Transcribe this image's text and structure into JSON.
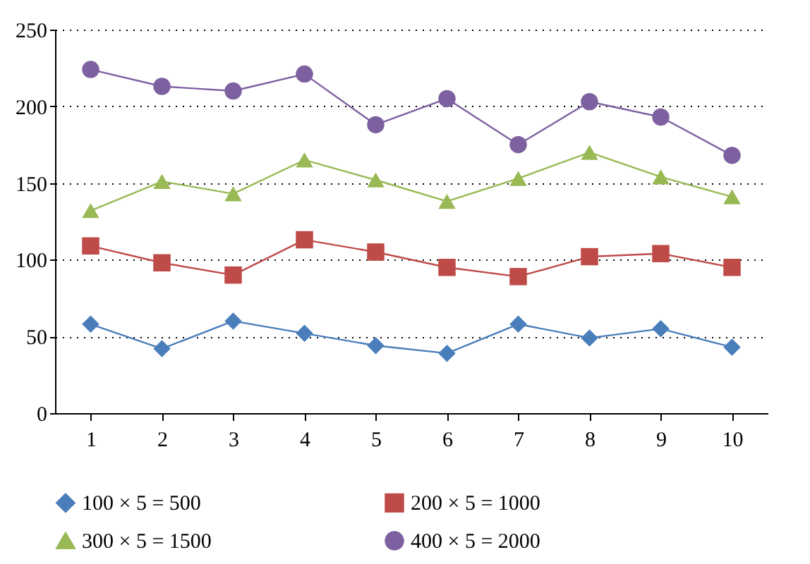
{
  "chart_data": {
    "type": "line",
    "categories": [
      "1",
      "2",
      "3",
      "4",
      "5",
      "6",
      "7",
      "8",
      "9",
      "10"
    ],
    "ylim": [
      0,
      250
    ],
    "yticks": [
      0,
      50,
      100,
      150,
      200,
      250
    ],
    "grid": "y",
    "legend": "bottom",
    "series": [
      {
        "name": "100 × 5 = 500",
        "color": "#4a7ebb",
        "marker": "diamond",
        "values": [
          58,
          42,
          60,
          52,
          44,
          39,
          58,
          49,
          55,
          43
        ]
      },
      {
        "name": "200 × 5 = 1000",
        "color": "#be4b48",
        "marker": "square",
        "values": [
          109,
          98,
          90,
          113,
          105,
          95,
          89,
          102,
          104,
          95
        ]
      },
      {
        "name": "300 × 5 = 1500",
        "color": "#98b954",
        "marker": "triangle",
        "values": [
          132,
          151,
          143,
          165,
          152,
          138,
          153,
          170,
          154,
          141
        ]
      },
      {
        "name": "400 × 5 = 2000",
        "color": "#7d60a0",
        "marker": "circle",
        "values": [
          224,
          213,
          210,
          221,
          188,
          205,
          175,
          203,
          193,
          168
        ]
      }
    ]
  }
}
